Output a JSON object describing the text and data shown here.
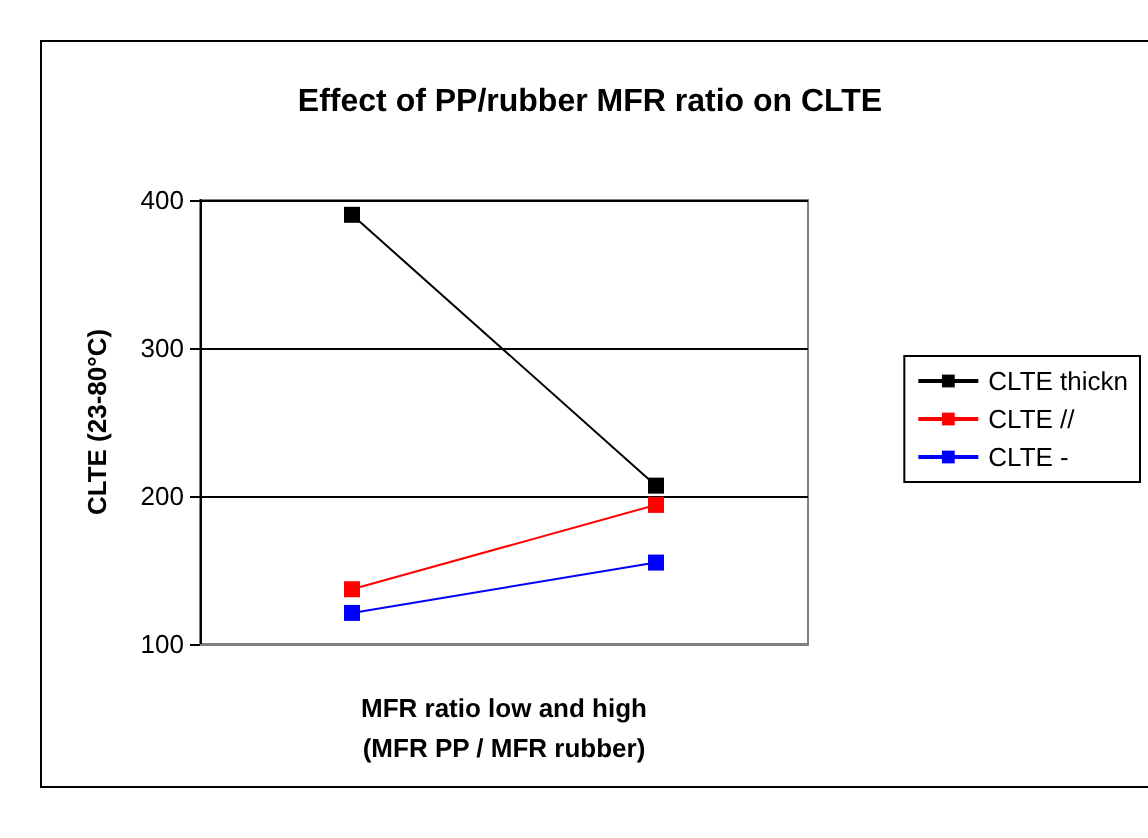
{
  "chart_data": {
    "type": "line",
    "title": "Effect of PP/rubber MFR ratio on CLTE",
    "xlabel": "MFR ratio low and high\n(MFR PP / MFR rubber)",
    "ylabel": "CLTE (23-80°C)",
    "categories": [
      null,
      null
    ],
    "series": [
      {
        "name": "CLTE thickn",
        "color": "#000000",
        "values": [
          390,
          207
        ]
      },
      {
        "name": "CLTE //",
        "color": "#ff0000",
        "values": [
          137,
          194
        ]
      },
      {
        "name": "CLTE -",
        "color": "#0000ff",
        "values": [
          121,
          155
        ]
      }
    ],
    "ylim": [
      100,
      400
    ],
    "yticks": [
      100,
      200,
      300,
      400
    ],
    "grid": "y",
    "legend": "right",
    "marker": "square",
    "line_style": "solid"
  }
}
